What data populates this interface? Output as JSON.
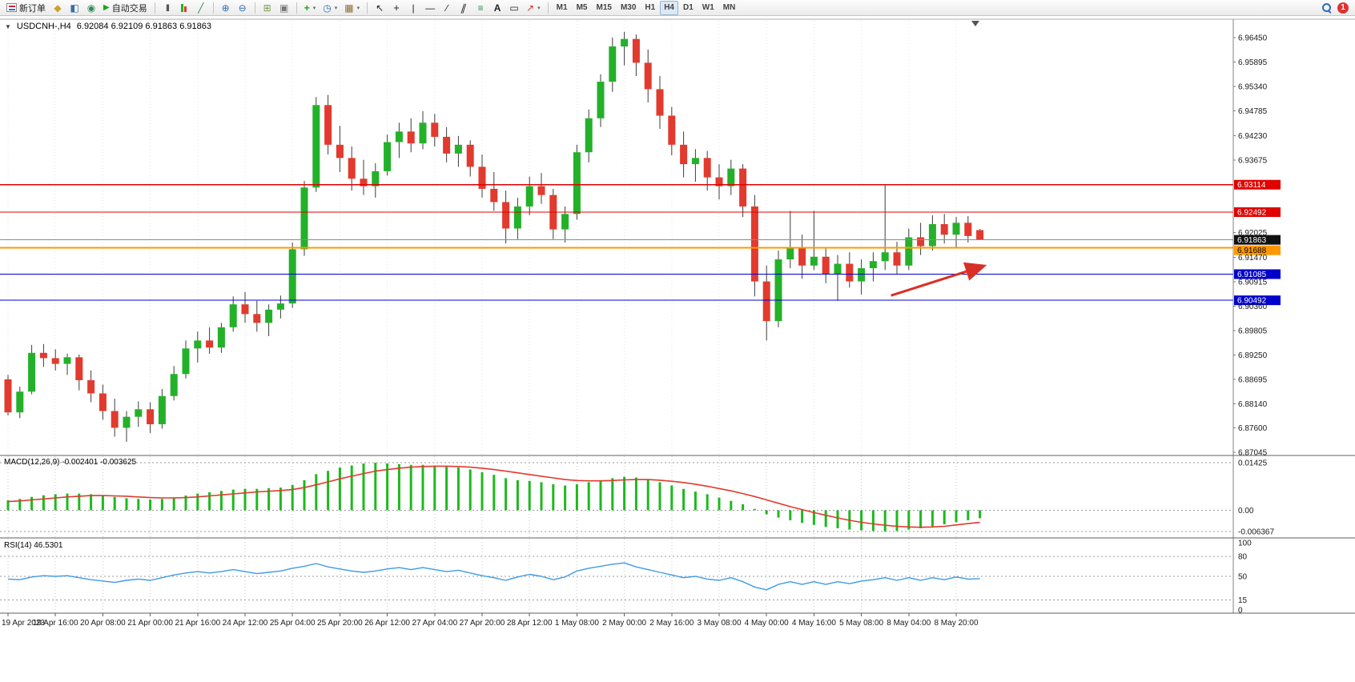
{
  "toolbar": {
    "new_order_label": "新订单",
    "auto_trading_label": "自动交易",
    "notification_count": "1",
    "timeframes": [
      "M1",
      "M5",
      "M15",
      "M30",
      "H1",
      "H4",
      "D1",
      "W1",
      "MN"
    ],
    "active_timeframe": "H4",
    "icons": {
      "metaeditor": "◆",
      "market_watch": "◧",
      "navigator": "◉",
      "play": "▶",
      "bars": "|||",
      "line_chart": "╱",
      "zoom_in": "⊕",
      "zoom_out": "⊖",
      "tile": "⊞",
      "arrange": "▣",
      "indicators_plus": "+",
      "clock": "◷",
      "templates": "▦",
      "caret": "▾",
      "cursor": "↖",
      "crosshair": "+",
      "vline": "|",
      "hline": "—",
      "trendline": "∕",
      "channel": "∥",
      "fibonacci": "≡",
      "text": "A",
      "label": "▭",
      "shapes": "↗"
    }
  },
  "chart": {
    "dropdown_icon": "▼",
    "symbol_period": "USDCNH-,H4",
    "ohlc": "6.92084 6.92109 6.91863 6.91863"
  },
  "chart_data": [
    {
      "type": "candlestick",
      "symbol": "USDCNH-",
      "timeframe": "H4",
      "ohlc_display": [
        6.92084,
        6.92109,
        6.91863,
        6.91863
      ],
      "colors": {
        "up": "#23b129",
        "down": "#e23a2e",
        "wick": "#3c3c3c"
      },
      "y_axis_ticks": [
        "6.96450",
        "6.95895",
        "6.95340",
        "6.94785",
        "6.94230",
        "6.93675",
        "6.92025",
        "6.91470",
        "6.90915",
        "6.90360",
        "6.89805",
        "6.89250",
        "6.88695",
        "6.88140",
        "6.87600",
        "6.87045"
      ],
      "x_labels": [
        "19 Apr 2023",
        "19 Apr 16:00",
        "20 Apr 08:00",
        "21 Apr 00:00",
        "21 Apr 16:00",
        "24 Apr 12:00",
        "25 Apr 04:00",
        "25 Apr 20:00",
        "26 Apr 12:00",
        "27 Apr 04:00",
        "27 Apr 20:00",
        "28 Apr 12:00",
        "1 May 08:00",
        "2 May 00:00",
        "2 May 16:00",
        "3 May 08:00",
        "4 May 00:00",
        "4 May 16:00",
        "5 May 08:00",
        "8 May 04:00",
        "8 May 20:00"
      ],
      "levels": [
        {
          "name": "resistance-line-1",
          "price": 6.93114,
          "label": "6.93114",
          "color": "#e00000",
          "width": 1.2,
          "badge_bg": "#e00000",
          "badge_fg": "#ffffff"
        },
        {
          "name": "resistance-line-2",
          "price": 6.92492,
          "label": "6.92492",
          "color": "#e00000",
          "width": 1.2,
          "badge_bg": "#e00000",
          "badge_fg": "#ffffff"
        },
        {
          "name": "current-price-line",
          "price": 6.91863,
          "label": "6.91863",
          "color": "#8a8a8a",
          "width": 1,
          "badge_bg": "#111111",
          "badge_fg": "#ffffff"
        },
        {
          "name": "pivot-line-orange",
          "price": 6.91688,
          "label": "6.91688",
          "color": "#ff9800",
          "width": 2,
          "badge_bg": "#ff9800",
          "badge_fg": "#000000"
        },
        {
          "name": "support-line-1",
          "price": 6.91085,
          "label": "6.91085",
          "color": "#0000cc",
          "width": 1.2,
          "badge_bg": "#0000cc",
          "badge_fg": "#ffffff"
        },
        {
          "name": "support-line-2",
          "price": 6.90492,
          "label": "6.90492",
          "color": "#0000cc",
          "width": 1.2,
          "badge_bg": "#0000cc",
          "badge_fg": "#ffffff"
        }
      ],
      "annotation_arrow": {
        "from": {
          "bar": 74.5,
          "price": 6.906
        },
        "to": {
          "bar": 82.2,
          "price": 6.9126
        },
        "color": "#d93025"
      },
      "candles": [
        [
          6.887,
          6.888,
          6.8788,
          6.8795
        ],
        [
          6.8795,
          6.8853,
          6.8782,
          6.8842
        ],
        [
          6.8842,
          6.8948,
          6.8836,
          6.893
        ],
        [
          6.893,
          6.895,
          6.8898,
          6.8918
        ],
        [
          6.8918,
          6.8938,
          6.889,
          6.8905
        ],
        [
          6.8905,
          6.8928,
          6.888,
          6.892
        ],
        [
          6.892,
          6.8926,
          6.8845,
          6.8868
        ],
        [
          6.8868,
          6.889,
          6.8818,
          6.8838
        ],
        [
          6.8838,
          6.8858,
          6.8778,
          6.8798
        ],
        [
          6.8798,
          6.8826,
          6.874,
          6.876
        ],
        [
          6.876,
          6.8798,
          6.8728,
          6.8785
        ],
        [
          6.8785,
          6.882,
          6.8762,
          6.8802
        ],
        [
          6.8802,
          6.8818,
          6.8748,
          6.8768
        ],
        [
          6.8768,
          6.8848,
          6.8758,
          6.8832
        ],
        [
          6.8832,
          6.89,
          6.8822,
          6.8882
        ],
        [
          6.8882,
          6.8958,
          6.8872,
          6.894
        ],
        [
          6.894,
          6.8978,
          6.8908,
          6.8958
        ],
        [
          6.8958,
          6.8988,
          6.8928,
          6.8942
        ],
        [
          6.8942,
          6.8998,
          6.893,
          6.8988
        ],
        [
          6.8988,
          6.9058,
          6.8978,
          6.904
        ],
        [
          6.904,
          6.9068,
          6.8998,
          6.9018
        ],
        [
          6.9018,
          6.9048,
          6.8978,
          6.8998
        ],
        [
          6.8998,
          6.904,
          6.8968,
          6.9028
        ],
        [
          6.9028,
          6.906,
          6.9008,
          6.9042
        ],
        [
          6.9042,
          6.918,
          6.9032,
          6.9165
        ],
        [
          6.9165,
          6.932,
          6.915,
          6.9305
        ],
        [
          6.9305,
          6.951,
          6.9295,
          6.9492
        ],
        [
          6.9492,
          6.9515,
          6.938,
          6.9402
        ],
        [
          6.9402,
          6.9445,
          6.934,
          6.9372
        ],
        [
          6.9372,
          6.9398,
          6.9298,
          6.9325
        ],
        [
          6.9325,
          6.9368,
          6.9288,
          6.9308
        ],
        [
          6.9308,
          6.936,
          6.9282,
          6.9342
        ],
        [
          6.9342,
          6.9425,
          6.9332,
          6.9408
        ],
        [
          6.9408,
          6.9452,
          6.9372,
          6.9432
        ],
        [
          6.9432,
          6.9462,
          6.9385,
          6.9405
        ],
        [
          6.9405,
          6.9478,
          6.9392,
          6.9452
        ],
        [
          6.9452,
          6.9472,
          6.9398,
          6.942
        ],
        [
          6.942,
          6.9442,
          6.9362,
          6.9382
        ],
        [
          6.9382,
          6.9422,
          6.9352,
          6.9402
        ],
        [
          6.9402,
          6.9412,
          6.933,
          6.9352
        ],
        [
          6.9352,
          6.938,
          6.9282,
          6.9302
        ],
        [
          6.9302,
          6.934,
          6.9252,
          6.9272
        ],
        [
          6.9272,
          6.9298,
          6.9178,
          6.9212
        ],
        [
          6.9212,
          6.9282,
          6.9188,
          6.9262
        ],
        [
          6.9262,
          6.933,
          6.9242,
          6.9308
        ],
        [
          6.9308,
          6.9338,
          6.9268,
          6.9288
        ],
        [
          6.9288,
          6.9302,
          6.9188,
          6.921
        ],
        [
          6.921,
          6.9262,
          6.918,
          6.9245
        ],
        [
          6.9245,
          6.9402,
          6.9232,
          6.9385
        ],
        [
          6.9385,
          6.9482,
          6.9362,
          6.9462
        ],
        [
          6.9462,
          6.9562,
          6.9442,
          6.9545
        ],
        [
          6.9545,
          6.9645,
          6.9522,
          6.9625
        ],
        [
          6.9625,
          6.9658,
          6.9582,
          6.9642
        ],
        [
          6.9642,
          6.9652,
          6.9558,
          6.9588
        ],
        [
          6.9588,
          6.9618,
          6.9498,
          6.9528
        ],
        [
          6.9528,
          6.9558,
          6.9438,
          6.9468
        ],
        [
          6.9468,
          6.9488,
          6.9378,
          6.9402
        ],
        [
          6.9402,
          6.9432,
          6.9328,
          6.9358
        ],
        [
          6.9358,
          6.9392,
          6.9318,
          6.9372
        ],
        [
          6.9372,
          6.9388,
          6.9298,
          6.9328
        ],
        [
          6.9328,
          6.9358,
          6.9278,
          6.9308
        ],
        [
          6.9308,
          6.9368,
          6.9288,
          6.9348
        ],
        [
          6.9348,
          6.9358,
          6.9238,
          6.9262
        ],
        [
          6.9262,
          6.9288,
          6.9058,
          6.9092
        ],
        [
          6.9092,
          6.9128,
          6.8958,
          6.9002
        ],
        [
          6.9002,
          6.9162,
          6.8988,
          6.9142
        ],
        [
          6.9142,
          6.9252,
          6.9122,
          6.9168
        ],
        [
          6.9168,
          6.9198,
          6.9098,
          6.9128
        ],
        [
          6.9128,
          6.9252,
          6.9118,
          6.9148
        ],
        [
          6.9148,
          6.9168,
          6.9088,
          6.9108
        ],
        [
          6.9108,
          6.9152,
          6.9048,
          6.9132
        ],
        [
          6.9132,
          6.9158,
          6.9078,
          6.9092
        ],
        [
          6.9092,
          6.9142,
          6.9062,
          6.9122
        ],
        [
          6.9122,
          6.9158,
          6.9092,
          6.9138
        ],
        [
          6.9138,
          6.9312,
          6.9118,
          6.9158
        ],
        [
          6.9158,
          6.9182,
          6.9108,
          6.9128
        ],
        [
          6.9128,
          6.9212,
          6.9118,
          6.9192
        ],
        [
          6.9192,
          6.9225,
          6.9152,
          6.9172
        ],
        [
          6.9172,
          6.9242,
          6.9162,
          6.9222
        ],
        [
          6.9222,
          6.9245,
          6.9178,
          6.9198
        ],
        [
          6.9198,
          6.9238,
          6.9168,
          6.9225
        ],
        [
          6.9225,
          6.924,
          6.918,
          6.9195
        ],
        [
          6.92084,
          6.92109,
          6.91863,
          6.91863
        ]
      ]
    },
    {
      "type": "bar",
      "name": "MACD",
      "label": "MACD(12,26,9) -0.002401 -0.003625",
      "values_display": [
        "-0.002401",
        "-0.003625"
      ],
      "colors": {
        "histogram": "#1db91d",
        "signal": "#e23a2e"
      },
      "y_ticks": [
        "0.01425",
        "0.00",
        "-0.006367"
      ],
      "histogram": [
        0.003,
        0.0034,
        0.004,
        0.0045,
        0.0048,
        0.005,
        0.005,
        0.0048,
        0.0044,
        0.004,
        0.0036,
        0.0034,
        0.0032,
        0.0034,
        0.0038,
        0.0044,
        0.005,
        0.0054,
        0.0058,
        0.0062,
        0.0064,
        0.0064,
        0.0066,
        0.0068,
        0.0076,
        0.009,
        0.0108,
        0.0118,
        0.0128,
        0.0134,
        0.014,
        0.01425,
        0.014,
        0.0138,
        0.0136,
        0.0136,
        0.0134,
        0.013,
        0.0128,
        0.0122,
        0.0114,
        0.0106,
        0.0096,
        0.009,
        0.0088,
        0.0084,
        0.0078,
        0.0074,
        0.0078,
        0.0084,
        0.009,
        0.0096,
        0.01,
        0.0098,
        0.0092,
        0.0084,
        0.0074,
        0.0064,
        0.0056,
        0.0048,
        0.0038,
        0.0028,
        0.0018,
        0.0004,
        -0.0012,
        -0.0022,
        -0.003,
        -0.0038,
        -0.0044,
        -0.005,
        -0.0054,
        -0.0058,
        -0.006,
        -0.0062,
        -0.006367,
        -0.0062,
        -0.0058,
        -0.0054,
        -0.0048,
        -0.0042,
        -0.0036,
        -0.003,
        -0.002401
      ],
      "signal": [
        0.0026,
        0.0028,
        0.0031,
        0.0034,
        0.0037,
        0.004,
        0.0042,
        0.0044,
        0.0044,
        0.0043,
        0.0042,
        0.004,
        0.0038,
        0.0037,
        0.0037,
        0.0038,
        0.004,
        0.0043,
        0.0046,
        0.0049,
        0.0052,
        0.0055,
        0.0057,
        0.0059,
        0.0062,
        0.0068,
        0.0076,
        0.0085,
        0.0094,
        0.0102,
        0.011,
        0.0117,
        0.0122,
        0.0126,
        0.0129,
        0.0131,
        0.0132,
        0.0132,
        0.0131,
        0.0129,
        0.0126,
        0.0122,
        0.0117,
        0.0112,
        0.0107,
        0.0102,
        0.0097,
        0.0092,
        0.0089,
        0.0088,
        0.0088,
        0.0089,
        0.0091,
        0.0092,
        0.0092,
        0.009,
        0.0087,
        0.0083,
        0.0078,
        0.0072,
        0.0065,
        0.0058,
        0.005,
        0.0041,
        0.0031,
        0.0021,
        0.0011,
        0.0002,
        -0.0007,
        -0.0015,
        -0.0023,
        -0.003,
        -0.0036,
        -0.0041,
        -0.0045,
        -0.0048,
        -0.005,
        -0.0051,
        -0.005,
        -0.0048,
        -0.0044,
        -0.004,
        -0.003625
      ]
    },
    {
      "type": "line",
      "name": "RSI",
      "label": "RSI(14) 46.5301",
      "value_display": "46.5301",
      "colors": {
        "line": "#3d9be9"
      },
      "y_ticks": [
        "100",
        "80",
        "50",
        "15",
        "0"
      ],
      "levels": [
        80,
        50,
        15
      ],
      "values": [
        46,
        45,
        49,
        51,
        50,
        51,
        48,
        45,
        43,
        41,
        44,
        46,
        44,
        48,
        52,
        55,
        57,
        55,
        57,
        60,
        57,
        54,
        56,
        58,
        62,
        65,
        69,
        64,
        61,
        58,
        56,
        58,
        61,
        63,
        60,
        63,
        60,
        57,
        59,
        55,
        51,
        48,
        44,
        49,
        53,
        50,
        45,
        49,
        58,
        62,
        65,
        68,
        70,
        64,
        60,
        56,
        52,
        48,
        50,
        46,
        44,
        48,
        42,
        34,
        30,
        38,
        42,
        38,
        42,
        38,
        42,
        39,
        43,
        45,
        48,
        44,
        48,
        44,
        48,
        45,
        49,
        46,
        46.5301
      ]
    }
  ]
}
